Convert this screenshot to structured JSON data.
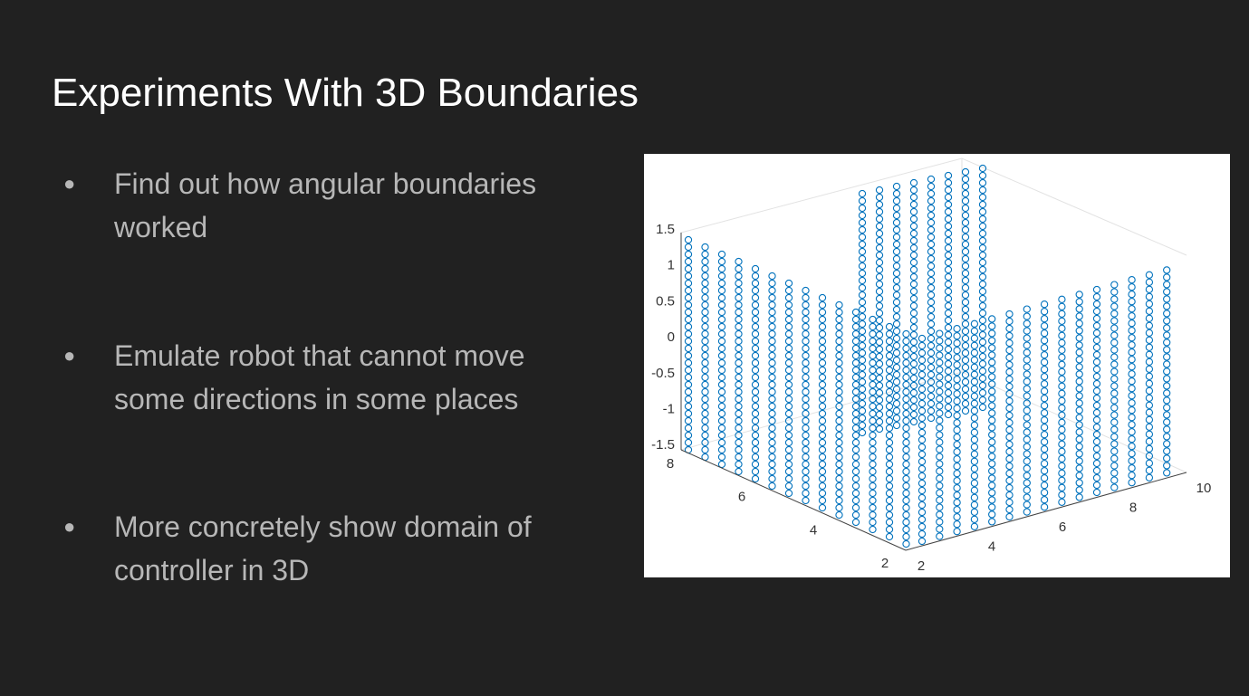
{
  "header": {
    "title": "Experiments With 3D Boundaries"
  },
  "bullets": [
    {
      "lines": [
        "Find out how angular boundaries",
        "worked"
      ]
    },
    {
      "lines": [
        "Emulate robot that cannot move",
        "some directions in some places"
      ]
    },
    {
      "lines": [
        "More concretely show domain of",
        "controller in 3D"
      ]
    }
  ],
  "figure": {
    "z_ticks": [
      "1.5",
      "1",
      "0.5",
      "0",
      "-0.5",
      "-1",
      "-1.5"
    ],
    "left_ticks": [
      "8",
      "6",
      "4",
      "2"
    ],
    "right_ticks": [
      "2",
      "4",
      "6",
      "8",
      "10"
    ]
  }
}
